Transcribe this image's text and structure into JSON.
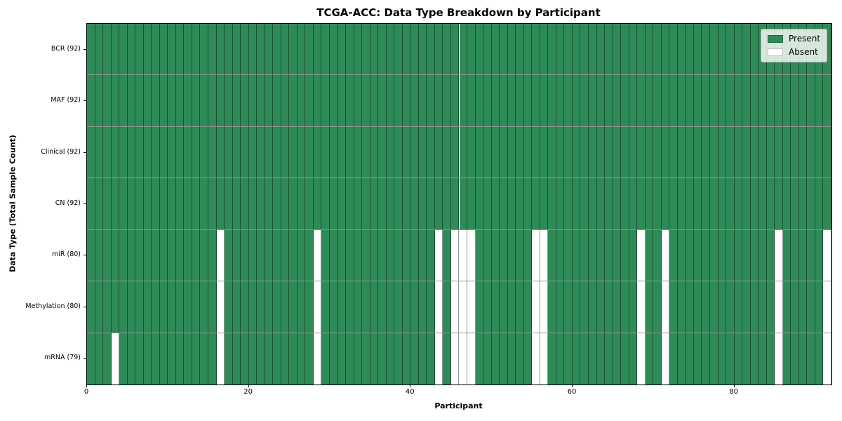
{
  "figure": {
    "title": "TCGA-ACC: Data Type Breakdown by Participant"
  },
  "chart_data": {
    "type": "heatmap",
    "title": "TCGA-ACC: Data Type Breakdown by Participant",
    "xlabel": "Participant",
    "ylabel": "Data Type (Total Sample Count)",
    "x_ticks": [
      0,
      20,
      40,
      60,
      80
    ],
    "x_range": [
      0,
      92
    ],
    "n_participants": 92,
    "grid": false,
    "cell_states": [
      "present",
      "absent"
    ],
    "colors": {
      "present": "#2e8b57",
      "absent": "#ffffff",
      "cell_edge": "rgba(0,0,0,0.42)"
    },
    "legend": {
      "position": "upper-right",
      "entries": [
        {
          "label": "Present",
          "color": "#2e8b57"
        },
        {
          "label": "Absent",
          "color": "#ffffff"
        }
      ]
    },
    "rows": [
      {
        "label": "BCR (92)",
        "data_type": "BCR",
        "total": 92,
        "absent_participants": []
      },
      {
        "label": "MAF (92)",
        "data_type": "MAF",
        "total": 92,
        "absent_participants": []
      },
      {
        "label": "Clinical (92)",
        "data_type": "Clinical",
        "total": 92,
        "absent_participants": []
      },
      {
        "label": "CN (92)",
        "data_type": "CN",
        "total": 92,
        "absent_participants": []
      },
      {
        "label": "miR (80)",
        "data_type": "miR",
        "total": 80,
        "absent_participants": [
          16,
          28,
          43,
          45,
          46,
          47,
          55,
          56,
          68,
          71,
          85,
          91
        ]
      },
      {
        "label": "Methylation (80)",
        "data_type": "Methylation",
        "total": 80,
        "absent_participants": [
          16,
          28,
          43,
          45,
          46,
          47,
          55,
          56,
          68,
          71,
          85,
          91
        ]
      },
      {
        "label": "mRNA (79)",
        "data_type": "mRNA",
        "total": 79,
        "absent_participants": [
          3,
          16,
          28,
          43,
          45,
          46,
          47,
          55,
          56,
          68,
          71,
          85,
          91
        ]
      }
    ]
  }
}
